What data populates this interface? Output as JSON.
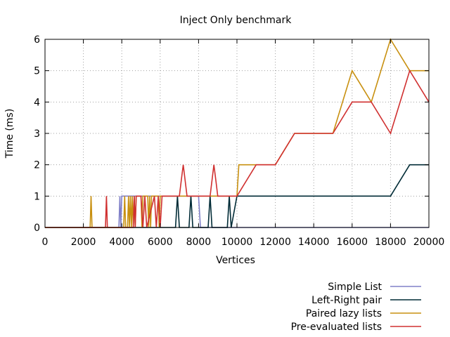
{
  "chart_data": {
    "type": "line",
    "title": "Inject Only benchmark",
    "xlabel": "Vertices",
    "ylabel": "Time (ms)",
    "xlim": [
      0,
      20000
    ],
    "ylim": [
      0,
      6
    ],
    "xticks": [
      0,
      2000,
      4000,
      6000,
      8000,
      10000,
      12000,
      14000,
      16000,
      18000,
      20000
    ],
    "xtick_labels": [
      "0",
      "2000",
      "4000",
      "6000",
      "8000",
      "10000",
      "12000",
      "14000",
      "16000",
      "18000",
      "20000"
    ],
    "yticks": [
      0,
      1,
      2,
      3,
      4,
      5,
      6
    ],
    "ytick_labels": [
      "0",
      "1",
      "2",
      "3",
      "4",
      "5",
      "6"
    ],
    "grid": true,
    "legend_position": "bottom-right, below plot",
    "series": [
      {
        "name": "Simple List",
        "color": "#8080c8",
        "x": [
          0,
          3850,
          3900,
          3950,
          4000,
          7900,
          8000,
          8100,
          20000
        ],
        "y": [
          0,
          0,
          1,
          0,
          1,
          1,
          1,
          0,
          0
        ]
      },
      {
        "name": "Left-Right pair",
        "color": "#002b36",
        "x": [
          0,
          6800,
          6900,
          7000,
          7500,
          7600,
          7700,
          8500,
          8600,
          8700,
          9500,
          9600,
          9700,
          10000,
          18000,
          19000,
          20000
        ],
        "y": [
          0,
          0,
          1,
          0,
          0,
          1,
          0,
          0,
          1,
          0,
          0,
          1,
          0,
          1,
          1,
          2,
          2
        ]
      },
      {
        "name": "Paired lazy lists",
        "color": "#c89010",
        "x": [
          0,
          2350,
          2400,
          2450,
          4100,
          4150,
          4200,
          4300,
          4350,
          4400,
          4450,
          4500,
          4550,
          4600,
          4650,
          4700,
          4750,
          5000,
          5050,
          5100,
          5350,
          5400,
          5450,
          5500,
          5550,
          5900,
          5950,
          6000,
          6050,
          10000,
          10100,
          11000,
          12000,
          13000,
          14000,
          15000,
          16000,
          17000,
          18000,
          19000,
          20000
        ],
        "y": [
          0,
          0,
          1,
          0,
          0,
          1,
          0,
          0,
          1,
          0,
          1,
          0,
          1,
          0,
          1,
          0,
          1,
          1,
          0,
          1,
          1,
          0,
          1,
          0,
          1,
          1,
          0,
          1,
          1,
          1,
          2,
          2,
          2,
          3,
          3,
          3,
          5,
          4,
          6,
          5,
          5
        ]
      },
      {
        "name": "Pre-evaluated lists",
        "color": "#d03030",
        "x": [
          0,
          3150,
          3200,
          3250,
          4600,
          4650,
          4700,
          4750,
          5000,
          5100,
          5200,
          5300,
          5700,
          5800,
          5900,
          6000,
          6100,
          7000,
          7100,
          7200,
          7300,
          7400,
          8600,
          8700,
          8800,
          8900,
          9000,
          10000,
          11000,
          12000,
          13000,
          14000,
          15000,
          16000,
          17000,
          18000,
          19000,
          20000
        ],
        "y": [
          0,
          0,
          1,
          0,
          0,
          1,
          0,
          1,
          1,
          0,
          1,
          0,
          1,
          0,
          1,
          0,
          1,
          1,
          1.5,
          2,
          1.5,
          1,
          1,
          1.5,
          2,
          1.5,
          1,
          1,
          2,
          2,
          3,
          3,
          3,
          4,
          4,
          3,
          5,
          4
        ]
      }
    ]
  }
}
